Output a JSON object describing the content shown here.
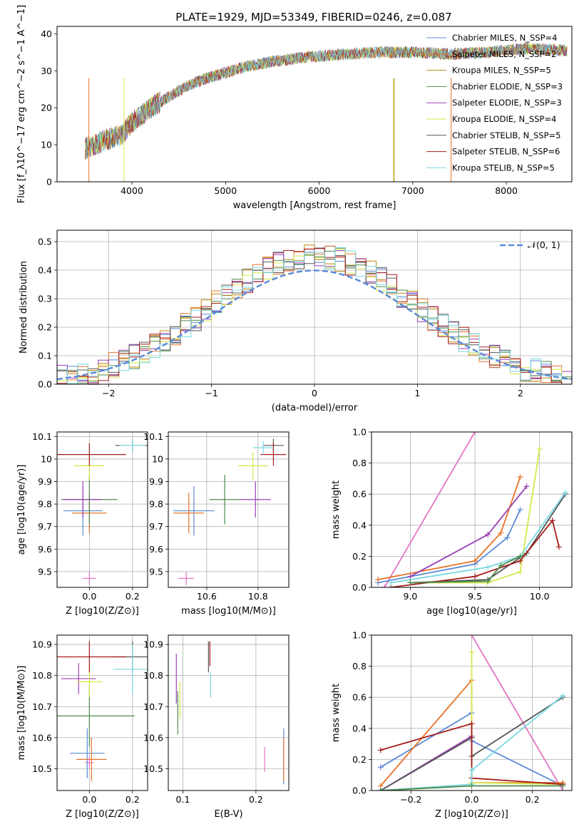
{
  "figure": {
    "title": "PLATE=1929, MJD=53349, FIBERID=0246, z=0.087"
  },
  "chart_data": [
    {
      "id": "spectrum",
      "type": "line",
      "xlabel": "wavelength [Angstrom, rest frame]",
      "ylabel": "Flux [f_λ10^−17 erg cm^−2 s^−1 A^−1]",
      "xlim": [
        3200,
        8700
      ],
      "ylim": [
        0,
        42
      ],
      "xticks": [
        4000,
        5000,
        6000,
        7000,
        8000
      ],
      "yticks": [
        0,
        10,
        20,
        30,
        40
      ],
      "grid": false,
      "legend_position": "right",
      "continuum": {
        "x": [
          3500,
          3700,
          3900,
          4000,
          4200,
          4400,
          4600,
          4800,
          5000,
          5200,
          5500,
          5800,
          6000,
          6300,
          6600,
          7000,
          7400,
          7800,
          8200,
          8600
        ],
        "y": [
          9,
          11,
          13,
          16,
          20,
          23,
          26,
          28,
          29.5,
          31,
          32.5,
          33.5,
          34,
          34.5,
          35,
          35,
          34.5,
          35,
          36,
          35.5
        ]
      },
      "series": [
        {
          "name": "Chabrier MILES, N_SSP=4",
          "color": "#5b8bd9"
        },
        {
          "name": "Salpeter MILES, N_SSP=2",
          "color": "#e8732a"
        },
        {
          "name": "Kroupa MILES, N_SSP=5",
          "color": "#b8860b"
        },
        {
          "name": "Chabrier ELODIE, N_SSP=3",
          "color": "#4b8b4b"
        },
        {
          "name": "Salpeter ELODIE, N_SSP=3",
          "color": "#9a3fb5"
        },
        {
          "name": "Kroupa ELODIE, N_SSP=4",
          "color": "#d6e84a"
        },
        {
          "name": "Chabrier STELIB, N_SSP=5",
          "color": "#555555"
        },
        {
          "name": "Salpeter STELIB, N_SSP=6",
          "color": "#a51c1c"
        },
        {
          "name": "Kroupa STELIB, N_SSP=5",
          "color": "#79d8e0"
        }
      ]
    },
    {
      "id": "residuals",
      "type": "line",
      "xlabel": "(data-model)/error",
      "ylabel": "Normed distribution",
      "xlim": [
        -2.5,
        2.5
      ],
      "ylim": [
        0,
        0.54
      ],
      "xticks": [
        -2,
        -1,
        0,
        1,
        2
      ],
      "yticks": [
        0.0,
        0.1,
        0.2,
        0.3,
        0.4,
        0.5
      ],
      "grid": true,
      "legend_position": "top-right",
      "reference_curve": {
        "name": "𝒩(0, 1)",
        "mean": 0,
        "sigma": 1,
        "color": "#5b8bd9"
      },
      "histogram_bin_width": 0.1
    },
    {
      "id": "age-vs-Z",
      "type": "scatter",
      "xlabel": "Z [log10(Z/Z⊙)]",
      "ylabel": "age  [log10(age/yr)]",
      "xlim": [
        -0.15,
        0.27
      ],
      "ylim": [
        9.43,
        10.12
      ],
      "xticks": [
        0.0,
        0.2
      ],
      "xticklabels": [
        "0.0",
        "0.2"
      ],
      "yticks": [
        9.5,
        9.6,
        9.7,
        9.8,
        9.9,
        10.0,
        10.1
      ],
      "grid": true,
      "points": [
        {
          "x": -0.03,
          "y": 9.77,
          "xerr": 0.09,
          "yerr": 0.11,
          "color": "#5b8bd9"
        },
        {
          "x": 0.0,
          "y": 9.76,
          "xerr": 0.08,
          "yerr": 0.09,
          "color": "#e8732a"
        },
        {
          "x": 0.0,
          "y": 9.82,
          "xerr": 0.13,
          "yerr": 0.11,
          "color": "#4b8b4b"
        },
        {
          "x": -0.03,
          "y": 9.82,
          "xerr": 0.09,
          "yerr": 0.08,
          "color": "#9a3fb5"
        },
        {
          "x": 0.0,
          "y": 9.97,
          "xerr": 0.07,
          "yerr": 0.06,
          "color": "#d6e84a"
        },
        {
          "x": 0.2,
          "y": 10.06,
          "xerr": 0.08,
          "yerr": 0.03,
          "color": "#555555"
        },
        {
          "x": 0.0,
          "y": 10.02,
          "xerr": 0.17,
          "yerr": 0.05,
          "color": "#a51c1c"
        },
        {
          "x": 0.2,
          "y": 10.06,
          "xerr": 0.06,
          "yerr": 0.03,
          "color": "#79d8e0"
        },
        {
          "x": 0.0,
          "y": 9.47,
          "xerr": 0.03,
          "yerr": 0.03,
          "color": "#e377c2"
        }
      ]
    },
    {
      "id": "age-vs-mass",
      "type": "scatter",
      "xlabel": "mass [log10(M/M⊙)]",
      "ylabel": "",
      "xlim": [
        10.45,
        10.92
      ],
      "ylim": [
        9.43,
        10.12
      ],
      "xticks": [
        10.6,
        10.8
      ],
      "xticklabels": [
        "10.6",
        "10.8"
      ],
      "yticks": [
        9.5,
        9.6,
        9.7,
        9.8,
        9.9,
        10.0,
        10.1
      ],
      "grid": true,
      "points": [
        {
          "x": 10.55,
          "y": 9.77,
          "xerr": 0.08,
          "yerr": 0.11,
          "color": "#5b8bd9"
        },
        {
          "x": 10.53,
          "y": 9.76,
          "xerr": 0.06,
          "yerr": 0.09,
          "color": "#e8732a"
        },
        {
          "x": 10.67,
          "y": 9.82,
          "xerr": 0.06,
          "yerr": 0.11,
          "color": "#4b8b4b"
        },
        {
          "x": 10.79,
          "y": 9.82,
          "xerr": 0.06,
          "yerr": 0.08,
          "color": "#9a3fb5"
        },
        {
          "x": 10.78,
          "y": 9.97,
          "xerr": 0.06,
          "yerr": 0.06,
          "color": "#d6e84a"
        },
        {
          "x": 10.86,
          "y": 10.06,
          "xerr": 0.04,
          "yerr": 0.03,
          "color": "#555555"
        },
        {
          "x": 10.86,
          "y": 10.02,
          "xerr": 0.05,
          "yerr": 0.05,
          "color": "#a51c1c"
        },
        {
          "x": 10.82,
          "y": 10.05,
          "xerr": 0.04,
          "yerr": 0.03,
          "color": "#79d8e0"
        },
        {
          "x": 10.52,
          "y": 9.47,
          "xerr": 0.03,
          "yerr": 0.03,
          "color": "#e377c2"
        }
      ]
    },
    {
      "id": "massweight-vs-age",
      "type": "line",
      "xlabel": "age  [log10(age/yr)]",
      "ylabel": "mass weight",
      "xlim": [
        8.7,
        10.25
      ],
      "ylim": [
        0,
        1
      ],
      "xticks": [
        9.0,
        9.5,
        10.0
      ],
      "xticklabels": [
        "9.0",
        "9.5",
        "10.0"
      ],
      "yticks": [
        0.0,
        0.2,
        0.4,
        0.6,
        0.8,
        1.0
      ],
      "grid": true,
      "series": [
        {
          "color": "#e377c2",
          "x": [
            8.8,
            9.5
          ],
          "y": [
            0.0,
            1.0
          ]
        },
        {
          "color": "#5b8bd9",
          "x": [
            8.75,
            9.5,
            9.75,
            9.85
          ],
          "y": [
            0.03,
            0.15,
            0.32,
            0.5
          ]
        },
        {
          "color": "#e8732a",
          "x": [
            8.75,
            9.5,
            9.7,
            9.85
          ],
          "y": [
            0.05,
            0.17,
            0.35,
            0.71
          ]
        },
        {
          "color": "#9a3fb5",
          "x": [
            9.0,
            9.6,
            9.9
          ],
          "y": [
            0.07,
            0.34,
            0.65
          ]
        },
        {
          "color": "#d6e84a",
          "x": [
            9.0,
            9.6,
            9.85,
            10.0
          ],
          "y": [
            0.03,
            0.03,
            0.1,
            0.89
          ]
        },
        {
          "color": "#555555",
          "x": [
            9.0,
            9.6,
            9.9,
            10.2
          ],
          "y": [
            0.03,
            0.05,
            0.22,
            0.6
          ]
        },
        {
          "color": "#a51c1c",
          "x": [
            8.85,
            9.5,
            9.85,
            10.1,
            10.15
          ],
          "y": [
            0.0,
            0.07,
            0.17,
            0.43,
            0.26
          ]
        },
        {
          "color": "#79d8e0",
          "x": [
            8.85,
            9.6,
            9.85,
            10.2
          ],
          "y": [
            0.03,
            0.13,
            0.2,
            0.61
          ]
        },
        {
          "color": "#4b8b4b",
          "x": [
            9.0,
            9.6,
            9.7,
            9.85
          ],
          "y": [
            0.03,
            0.04,
            0.14,
            0.2
          ]
        }
      ]
    },
    {
      "id": "mass-vs-Z",
      "type": "scatter",
      "xlabel": "Z [log10(Z/Z⊙)]",
      "ylabel": "mass [log10(M/M⊙)]",
      "xlim": [
        -0.15,
        0.27
      ],
      "ylim": [
        10.43,
        10.93
      ],
      "xticks": [
        0.0,
        0.2
      ],
      "xticklabels": [
        "0.0",
        "0.2"
      ],
      "yticks": [
        10.5,
        10.6,
        10.7,
        10.8,
        10.9
      ],
      "grid": true,
      "points": [
        {
          "x": -0.01,
          "y": 10.55,
          "xerr": 0.08,
          "yerr": 0.08,
          "color": "#5b8bd9"
        },
        {
          "x": 0.01,
          "y": 10.53,
          "xerr": 0.07,
          "yerr": 0.07,
          "color": "#e8732a"
        },
        {
          "x": 0.0,
          "y": 10.67,
          "xerr": 0.21,
          "yerr": 0.1,
          "color": "#4b8b4b"
        },
        {
          "x": -0.05,
          "y": 10.79,
          "xerr": 0.08,
          "yerr": 0.05,
          "color": "#9a3fb5"
        },
        {
          "x": 0.0,
          "y": 10.78,
          "xerr": 0.06,
          "yerr": 0.05,
          "color": "#d6e84a"
        },
        {
          "x": 0.2,
          "y": 10.86,
          "xerr": 0.09,
          "yerr": 0.05,
          "color": "#555555"
        },
        {
          "x": 0.0,
          "y": 10.86,
          "xerr": 0.17,
          "yerr": 0.05,
          "color": "#a51c1c"
        },
        {
          "x": 0.2,
          "y": 10.82,
          "xerr": 0.09,
          "yerr": 0.08,
          "color": "#79d8e0"
        },
        {
          "x": 0.0,
          "y": 10.52,
          "xerr": 0.02,
          "yerr": 0.02,
          "color": "#e377c2"
        }
      ]
    },
    {
      "id": "mass-vs-EBV",
      "type": "scatter",
      "xlabel": "E(B-V)",
      "ylabel": "",
      "xlim": [
        0.08,
        0.245
      ],
      "ylim": [
        10.43,
        10.93
      ],
      "xticks": [
        0.1,
        0.2
      ],
      "xticklabels": [
        "0.1",
        "0.2"
      ],
      "yticks": [
        10.5,
        10.6,
        10.7,
        10.8,
        10.9
      ],
      "grid": true,
      "points": [
        {
          "x": 0.238,
          "y": 10.54,
          "xerr": 0,
          "yerr": 0.09,
          "color": "#5b8bd9"
        },
        {
          "x": 0.238,
          "y": 10.53,
          "xerr": 0,
          "yerr": 0.07,
          "color": "#e8732a"
        },
        {
          "x": 0.093,
          "y": 10.68,
          "xerr": 0,
          "yerr": 0.07,
          "color": "#4b8b4b"
        },
        {
          "x": 0.091,
          "y": 10.79,
          "xerr": 0,
          "yerr": 0.08,
          "color": "#9a3fb5"
        },
        {
          "x": 0.096,
          "y": 10.72,
          "xerr": 0,
          "yerr": 0.06,
          "color": "#d6e84a"
        },
        {
          "x": 0.135,
          "y": 10.86,
          "xerr": 0,
          "yerr": 0.05,
          "color": "#555555"
        },
        {
          "x": 0.137,
          "y": 10.87,
          "xerr": 0,
          "yerr": 0.04,
          "color": "#a51c1c"
        },
        {
          "x": 0.138,
          "y": 10.77,
          "xerr": 0,
          "yerr": 0.04,
          "color": "#79d8e0"
        },
        {
          "x": 0.212,
          "y": 10.53,
          "xerr": 0,
          "yerr": 0.04,
          "color": "#e377c2"
        }
      ]
    },
    {
      "id": "massweight-vs-Z",
      "type": "line",
      "xlabel": "Z [log10(Z/Z⊙)]",
      "ylabel": "mass weight",
      "xlim": [
        -0.33,
        0.33
      ],
      "ylim": [
        0,
        1
      ],
      "xticks": [
        -0.2,
        0.0,
        0.2
      ],
      "xticklabels": [
        "−0.2",
        "0.0",
        "0.2"
      ],
      "yticks": [
        0.0,
        0.2,
        0.4,
        0.6,
        0.8,
        1.0
      ],
      "grid": true,
      "series": [
        {
          "color": "#e377c2",
          "x": [
            0.0,
            0.3
          ],
          "y": [
            1.0,
            0.0
          ]
        },
        {
          "color": "#5b8bd9",
          "x": [
            -0.3,
            0.0,
            0.0,
            0.3
          ],
          "y": [
            0.15,
            0.5,
            0.32,
            0.03
          ]
        },
        {
          "color": "#e8732a",
          "x": [
            -0.3,
            0.0,
            0.0,
            0.3
          ],
          "y": [
            0.03,
            0.71,
            0.05,
            0.05
          ]
        },
        {
          "color": "#9a3fb5",
          "x": [
            -0.3,
            0.0,
            0.0
          ],
          "y": [
            0.0,
            0.35,
            0.34
          ]
        },
        {
          "color": "#d6e84a",
          "x": [
            0.0,
            0.0,
            0.3
          ],
          "y": [
            0.89,
            0.05,
            0.04
          ]
        },
        {
          "color": "#555555",
          "x": [
            -0.3,
            0.0,
            0.0,
            0.3
          ],
          "y": [
            0.0,
            0.34,
            0.22,
            0.6
          ]
        },
        {
          "color": "#a51c1c",
          "x": [
            -0.3,
            0.0,
            0.0,
            0.3
          ],
          "y": [
            0.26,
            0.43,
            0.08,
            0.04
          ]
        },
        {
          "color": "#79d8e0",
          "x": [
            -0.3,
            0.0,
            0.0,
            0.3
          ],
          "y": [
            0.0,
            0.04,
            0.13,
            0.61
          ]
        },
        {
          "color": "#4b8b4b",
          "x": [
            -0.3,
            0.0,
            0.3
          ],
          "y": [
            0.0,
            0.03,
            0.03
          ]
        }
      ]
    }
  ]
}
